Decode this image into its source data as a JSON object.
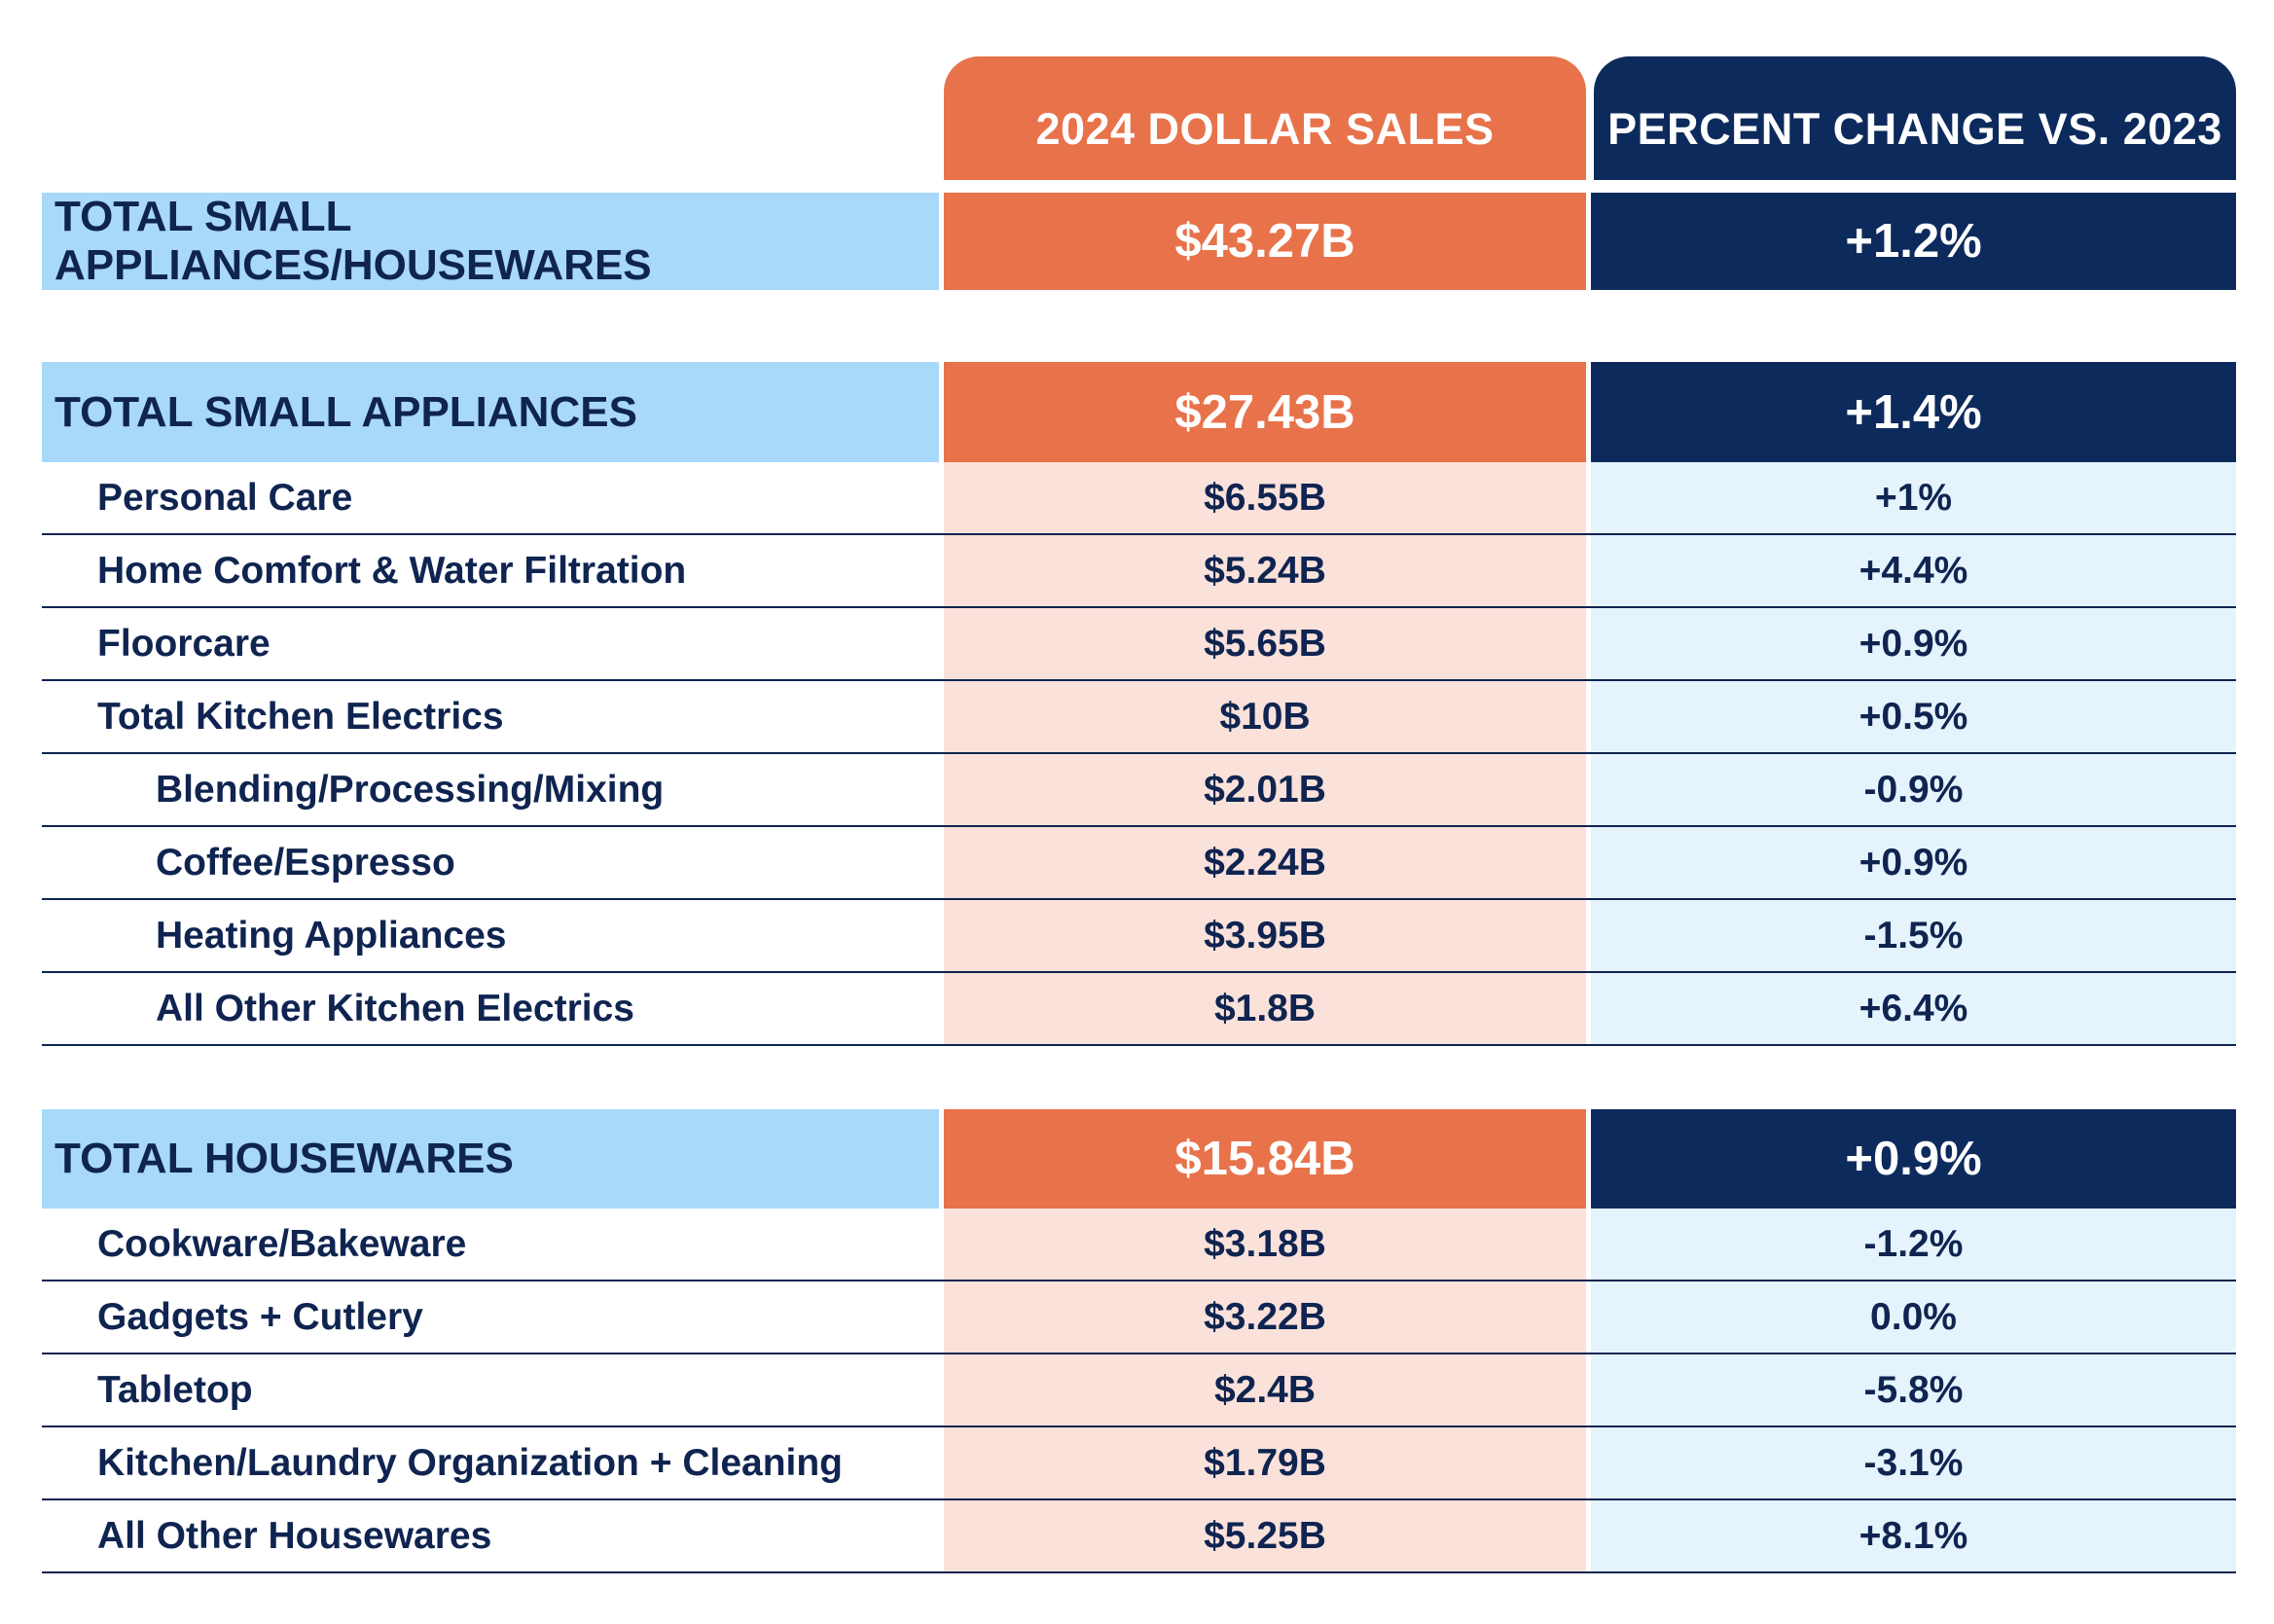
{
  "chart_data": {
    "type": "table",
    "columns": [
      "",
      "2024 DOLLAR SALES",
      "PERCENT CHANGE VS. 2023"
    ],
    "rows": [
      {
        "label": "TOTAL SMALL APPLIANCES/HOUSEWARES",
        "sales": "$43.27B",
        "change": "+1.2%",
        "level": 0
      },
      {
        "label": "TOTAL SMALL APPLIANCES",
        "sales": "$27.43B",
        "change": "+1.4%",
        "level": 0
      },
      {
        "label": "Personal Care",
        "sales": "$6.55B",
        "change": "+1%",
        "level": 1
      },
      {
        "label": "Home Comfort & Water Filtration",
        "sales": "$5.24B",
        "change": "+4.4%",
        "level": 1
      },
      {
        "label": "Floorcare",
        "sales": "$5.65B",
        "change": "+0.9%",
        "level": 1
      },
      {
        "label": "Total Kitchen Electrics",
        "sales": "$10B",
        "change": "+0.5%",
        "level": 1
      },
      {
        "label": "Blending/Processing/Mixing",
        "sales": "$2.01B",
        "change": "-0.9%",
        "level": 2
      },
      {
        "label": "Coffee/Espresso",
        "sales": "$2.24B",
        "change": "+0.9%",
        "level": 2
      },
      {
        "label": "Heating Appliances",
        "sales": "$3.95B",
        "change": "-1.5%",
        "level": 2
      },
      {
        "label": "All Other Kitchen Electrics",
        "sales": "$1.8B",
        "change": "+6.4%",
        "level": 2
      },
      {
        "label": "TOTAL HOUSEWARES",
        "sales": "$15.84B",
        "change": "+0.9%",
        "level": 0
      },
      {
        "label": "Cookware/Bakeware",
        "sales": "$3.18B",
        "change": "-1.2%",
        "level": 1
      },
      {
        "label": "Gadgets + Cutlery",
        "sales": "$3.22B",
        "change": "0.0%",
        "level": 1
      },
      {
        "label": "Tabletop",
        "sales": "$2.4B",
        "change": "-5.8%",
        "level": 1
      },
      {
        "label": "Kitchen/Laundry Organization + Cleaning",
        "sales": "$1.79B",
        "change": "-3.1%",
        "level": 1
      },
      {
        "label": "All Other Housewares",
        "sales": "$5.25B",
        "change": "+8.1%",
        "level": 1
      }
    ]
  },
  "colors": {
    "orange": "#e8724a",
    "navy": "#0d2a5c",
    "light_blue": "#a8d8fa",
    "light_orange": "#fae1da",
    "pale_blue": "#e4f3fc"
  }
}
